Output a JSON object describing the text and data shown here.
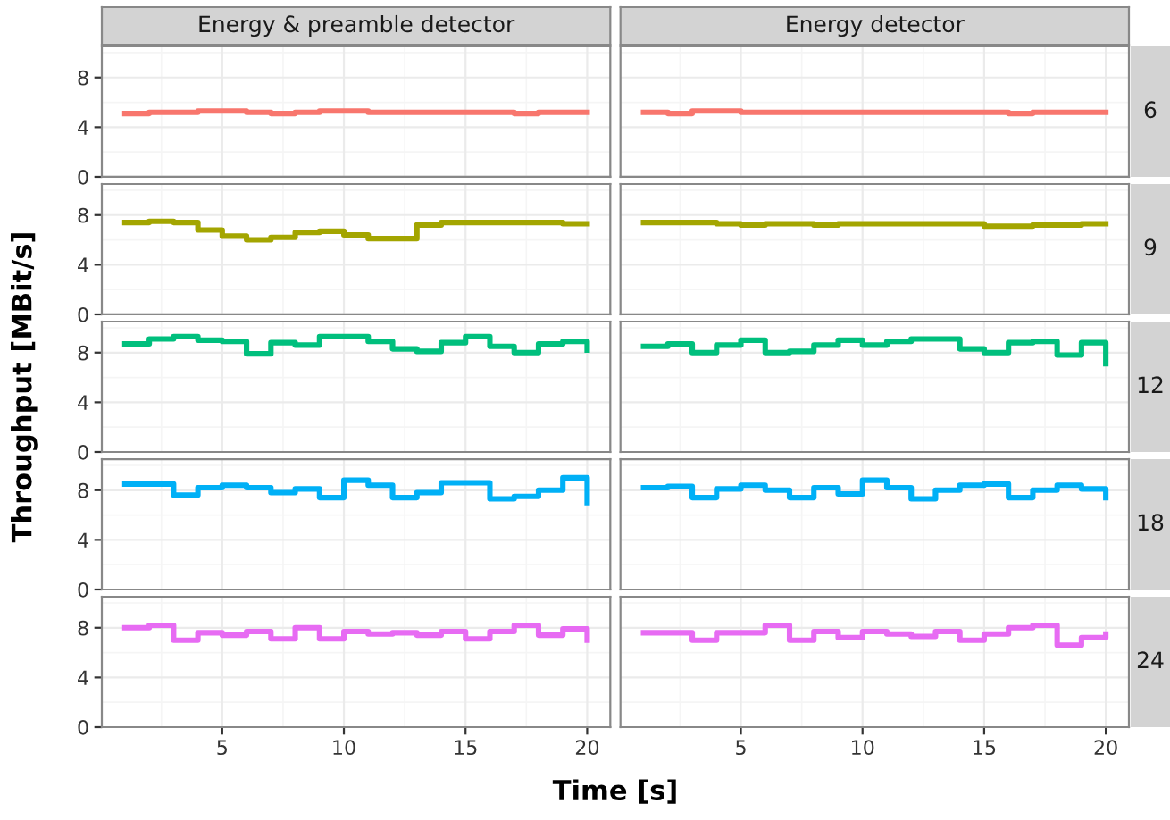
{
  "chart_data": [
    {
      "type": "step",
      "title": "Energy & preamble detector",
      "xlabel": "Time [s]",
      "ylabel": "Throughput [MBit/s]",
      "x": [
        1,
        2,
        3,
        4,
        5,
        6,
        7,
        8,
        9,
        10,
        11,
        12,
        13,
        14,
        15,
        16,
        17,
        18,
        19,
        20
      ],
      "values": [
        5.1,
        5.2,
        5.2,
        5.3,
        5.3,
        5.2,
        5.1,
        5.2,
        5.3,
        5.3,
        5.2,
        5.2,
        5.2,
        5.2,
        5.2,
        5.2,
        5.1,
        5.2,
        5.2,
        5.2
      ],
      "color": "#f8766d",
      "xlim": [
        0.05,
        20.95
      ],
      "ylim": [
        0,
        10.5
      ],
      "xticks": [
        5,
        10,
        15,
        20
      ],
      "yticks": [
        0,
        4,
        8
      ],
      "grid": true,
      "tick_labels": "y"
    },
    {
      "type": "step",
      "title": "Energy detector",
      "y2label": "6",
      "x": [
        1,
        2,
        3,
        4,
        5,
        6,
        7,
        8,
        9,
        10,
        11,
        12,
        13,
        14,
        15,
        16,
        17,
        18,
        19,
        20
      ],
      "values": [
        5.2,
        5.1,
        5.3,
        5.3,
        5.2,
        5.2,
        5.2,
        5.2,
        5.2,
        5.2,
        5.2,
        5.2,
        5.2,
        5.2,
        5.2,
        5.1,
        5.2,
        5.2,
        5.2,
        5.2
      ],
      "color": "#f8766d",
      "xlim": [
        0.05,
        20.95
      ],
      "ylim": [
        0,
        10.5
      ],
      "xticks": [
        5,
        10,
        15,
        20
      ],
      "yticks": [
        0,
        4,
        8
      ],
      "grid": true,
      "tick_labels": false
    },
    {
      "type": "step",
      "x": [
        1,
        2,
        3,
        4,
        5,
        6,
        7,
        8,
        9,
        10,
        11,
        12,
        13,
        14,
        15,
        16,
        17,
        18,
        19,
        20
      ],
      "values": [
        7.4,
        7.5,
        7.4,
        6.8,
        6.3,
        6.0,
        6.2,
        6.6,
        6.7,
        6.4,
        6.1,
        6.1,
        7.2,
        7.4,
        7.4,
        7.4,
        7.4,
        7.4,
        7.3,
        7.3
      ],
      "color": "#a3a500",
      "xlim": [
        0.05,
        20.95
      ],
      "ylim": [
        0,
        10.5
      ],
      "xticks": [
        5,
        10,
        15,
        20
      ],
      "yticks": [
        0,
        4,
        8
      ],
      "grid": true,
      "tick_labels": "y"
    },
    {
      "type": "step",
      "y2label": "9",
      "x": [
        1,
        2,
        3,
        4,
        5,
        6,
        7,
        8,
        9,
        10,
        11,
        12,
        13,
        14,
        15,
        16,
        17,
        18,
        19,
        20
      ],
      "values": [
        7.4,
        7.4,
        7.4,
        7.3,
        7.2,
        7.3,
        7.3,
        7.2,
        7.3,
        7.3,
        7.3,
        7.3,
        7.3,
        7.3,
        7.1,
        7.1,
        7.2,
        7.2,
        7.3,
        7.3
      ],
      "color": "#a3a500",
      "xlim": [
        0.05,
        20.95
      ],
      "ylim": [
        0,
        10.5
      ],
      "xticks": [
        5,
        10,
        15,
        20
      ],
      "yticks": [
        0,
        4,
        8
      ],
      "grid": true,
      "tick_labels": false
    },
    {
      "type": "step",
      "x": [
        1,
        2,
        3,
        4,
        5,
        6,
        7,
        8,
        9,
        10,
        11,
        12,
        13,
        14,
        15,
        16,
        17,
        18,
        19,
        20
      ],
      "values": [
        8.7,
        9.1,
        9.3,
        9.0,
        8.9,
        7.9,
        8.8,
        8.6,
        9.3,
        9.3,
        8.9,
        8.3,
        8.1,
        8.8,
        9.3,
        8.5,
        8.0,
        8.7,
        8.9,
        8.2
      ],
      "color": "#00bf7d",
      "xlim": [
        0.05,
        20.95
      ],
      "ylim": [
        0,
        10.5
      ],
      "xticks": [
        5,
        10,
        15,
        20
      ],
      "yticks": [
        0,
        4,
        8
      ],
      "grid": true,
      "tick_labels": "y"
    },
    {
      "type": "step",
      "y2label": "12",
      "x": [
        1,
        2,
        3,
        4,
        5,
        6,
        7,
        8,
        9,
        10,
        11,
        12,
        13,
        14,
        15,
        16,
        17,
        18,
        19,
        20
      ],
      "values": [
        8.5,
        8.7,
        8.0,
        8.6,
        9.0,
        8.0,
        8.1,
        8.6,
        9.0,
        8.6,
        8.9,
        9.1,
        9.1,
        8.3,
        8.0,
        8.8,
        8.9,
        7.8,
        8.8,
        7.1
      ],
      "color": "#00bf7d",
      "xlim": [
        0.05,
        20.95
      ],
      "ylim": [
        0,
        10.5
      ],
      "xticks": [
        5,
        10,
        15,
        20
      ],
      "yticks": [
        0,
        4,
        8
      ],
      "grid": true,
      "tick_labels": false
    },
    {
      "type": "step",
      "x": [
        1,
        2,
        3,
        4,
        5,
        6,
        7,
        8,
        9,
        10,
        11,
        12,
        13,
        14,
        15,
        16,
        17,
        18,
        19,
        20
      ],
      "values": [
        8.5,
        8.5,
        7.6,
        8.2,
        8.4,
        8.2,
        7.8,
        8.1,
        7.4,
        8.8,
        8.4,
        7.4,
        7.8,
        8.6,
        8.6,
        7.3,
        7.5,
        8.0,
        9.0,
        7.0
      ],
      "color": "#00b0f6",
      "xlim": [
        0.05,
        20.95
      ],
      "ylim": [
        0,
        10.5
      ],
      "xticks": [
        5,
        10,
        15,
        20
      ],
      "yticks": [
        0,
        4,
        8
      ],
      "grid": true,
      "tick_labels": "y"
    },
    {
      "type": "step",
      "y2label": "18",
      "x": [
        1,
        2,
        3,
        4,
        5,
        6,
        7,
        8,
        9,
        10,
        11,
        12,
        13,
        14,
        15,
        16,
        17,
        18,
        19,
        20
      ],
      "values": [
        8.2,
        8.3,
        7.4,
        8.1,
        8.4,
        8.0,
        7.4,
        8.2,
        7.7,
        8.8,
        8.2,
        7.3,
        8.0,
        8.4,
        8.5,
        7.4,
        8.0,
        8.4,
        8.1,
        7.4
      ],
      "color": "#00b0f6",
      "xlim": [
        0.05,
        20.95
      ],
      "ylim": [
        0,
        10.5
      ],
      "xticks": [
        5,
        10,
        15,
        20
      ],
      "yticks": [
        0,
        4,
        8
      ],
      "grid": true,
      "tick_labels": false
    },
    {
      "type": "step",
      "x": [
        1,
        2,
        3,
        4,
        5,
        6,
        7,
        8,
        9,
        10,
        11,
        12,
        13,
        14,
        15,
        16,
        17,
        18,
        19,
        20
      ],
      "values": [
        8.0,
        8.2,
        7.0,
        7.6,
        7.4,
        7.7,
        7.1,
        8.0,
        7.1,
        7.7,
        7.5,
        7.6,
        7.4,
        7.7,
        7.1,
        7.7,
        8.2,
        7.4,
        7.9,
        7.0
      ],
      "color": "#e76bf3",
      "xlim": [
        0.05,
        20.95
      ],
      "ylim": [
        0,
        10.5
      ],
      "xticks": [
        5,
        10,
        15,
        20
      ],
      "yticks": [
        0,
        4,
        8
      ],
      "grid": true
    },
    {
      "type": "step",
      "y2label": "24",
      "x": [
        1,
        2,
        3,
        4,
        5,
        6,
        7,
        8,
        9,
        10,
        11,
        12,
        13,
        14,
        15,
        16,
        17,
        18,
        19,
        20
      ],
      "values": [
        7.6,
        7.6,
        7.0,
        7.6,
        7.6,
        8.2,
        7.0,
        7.7,
        7.2,
        7.7,
        7.5,
        7.3,
        7.7,
        7.0,
        7.5,
        8.0,
        8.2,
        6.6,
        7.2,
        7.5
      ],
      "color": "#e76bf3",
      "xlim": [
        0.05,
        20.95
      ],
      "ylim": [
        0,
        10.5
      ],
      "xticks": [
        5,
        10,
        15,
        20
      ],
      "yticks": [
        0,
        4,
        8
      ],
      "grid": true,
      "tick_labels": "x"
    }
  ]
}
